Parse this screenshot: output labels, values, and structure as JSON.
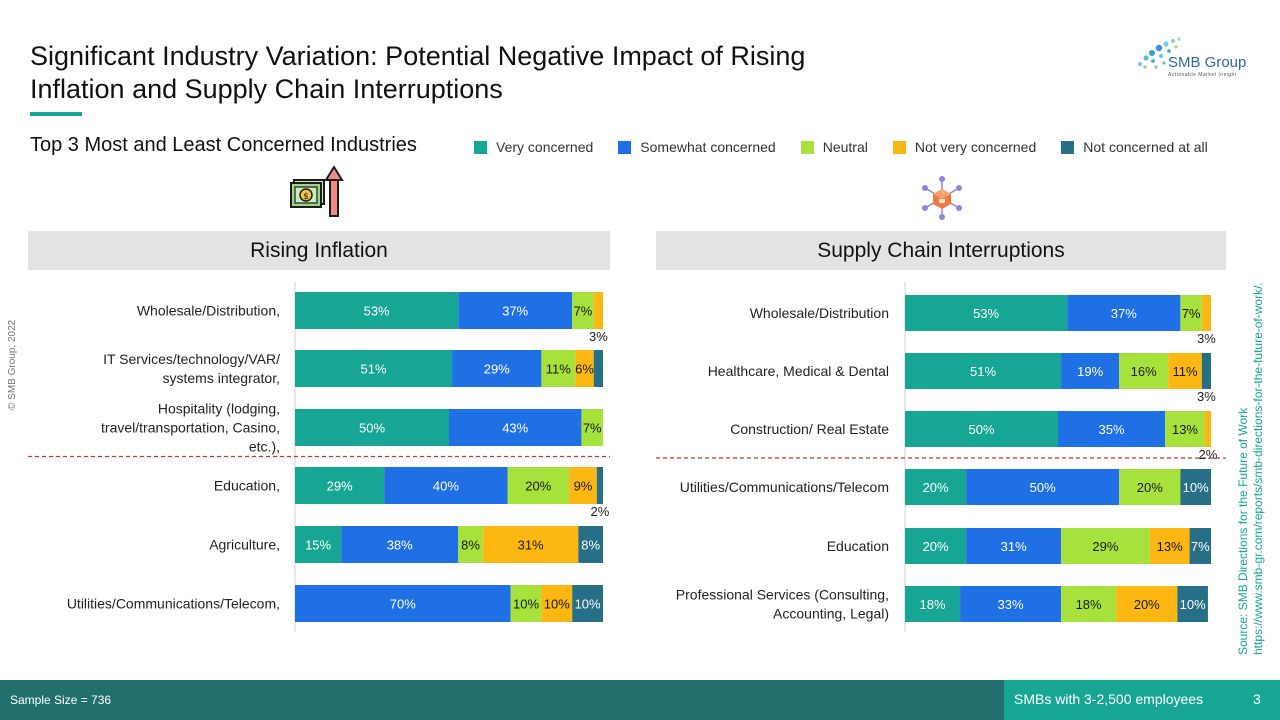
{
  "slide": {
    "title": "Significant Industry Variation: Potential Negative Impact of Rising Inflation and Supply Chain Interruptions",
    "subtitle": "Top 3 Most and Least Concerned Industries",
    "copyright": "© SMB Group, 2022",
    "source_line1": "Source: SMB Directions for the Future of Work",
    "source_line2": "https://www.smb-gr.com/reports/smb-directions-for-the-future-of-work/.",
    "footer_left": "Sample Size = 736",
    "footer_right": "SMBs with 3-2,500 employees",
    "page_number": "3",
    "logo_name": "SMB Group",
    "logo_tagline": "Actionable Market Insight",
    "icons": [
      "money-inflation-icon",
      "supply-chain-network-icon",
      "smb-group-logo-icon"
    ]
  },
  "legend": [
    {
      "label": "Very concerned",
      "color": "#16a693"
    },
    {
      "label": "Somewhat concerned",
      "color": "#1f6fe5"
    },
    {
      "label": "Neutral",
      "color": "#a6e13c"
    },
    {
      "label": "Not very concerned",
      "color": "#fcb712"
    },
    {
      "label": "Not concerned at all",
      "color": "#266f87"
    }
  ],
  "chart_data": [
    {
      "type": "bar",
      "orientation": "horizontal",
      "stacked": true,
      "title": "Rising Inflation",
      "xlim": [
        0,
        100
      ],
      "series_names": [
        "Very concerned",
        "Somewhat concerned",
        "Neutral",
        "Not very concerned",
        "Not concerned at all"
      ],
      "categories": [
        "Wholesale/Distribution,",
        "IT Services/technology/VAR/ systems integrator,",
        "Hospitality (lodging, travel/transportation, Casino, etc.),",
        "Education,",
        "Agriculture,",
        "Utilities/Communications/Telecom,"
      ],
      "values": [
        [
          53,
          37,
          7,
          3,
          0
        ],
        [
          51,
          29,
          11,
          6,
          3
        ],
        [
          50,
          43,
          7,
          0,
          0
        ],
        [
          29,
          40,
          20,
          9,
          2
        ],
        [
          15,
          38,
          8,
          31,
          8
        ],
        [
          0,
          70,
          10,
          10,
          10
        ]
      ],
      "labels": [
        [
          "53%",
          "37%",
          "7%",
          "3%",
          ""
        ],
        [
          "51%",
          "29%",
          "11%",
          "6%",
          ""
        ],
        [
          "50%",
          "43%",
          "7%",
          "",
          ""
        ],
        [
          "29%",
          "40%",
          "20%",
          "9%",
          "2%"
        ],
        [
          "15%",
          "38%",
          "8%",
          "31%",
          "8%"
        ],
        [
          "",
          "70%",
          "10%",
          "10%",
          "10%"
        ]
      ],
      "divider_after_index": 2
    },
    {
      "type": "bar",
      "orientation": "horizontal",
      "stacked": true,
      "title": "Supply Chain Interruptions",
      "xlim": [
        0,
        100
      ],
      "series_names": [
        "Very concerned",
        "Somewhat concerned",
        "Neutral",
        "Not very concerned",
        "Not concerned at all"
      ],
      "categories": [
        "Wholesale/Distribution",
        "Healthcare, Medical & Dental",
        "Construction/ Real Estate",
        "Utilities/Communications/Telecom",
        "Education",
        "Professional Services (Consulting, Accounting, Legal)"
      ],
      "values": [
        [
          53,
          37,
          7,
          3,
          0
        ],
        [
          51,
          19,
          16,
          11,
          3
        ],
        [
          50,
          35,
          13,
          2,
          0
        ],
        [
          20,
          50,
          20,
          0,
          10
        ],
        [
          20,
          31,
          29,
          13,
          7
        ],
        [
          18,
          33,
          18,
          20,
          10
        ]
      ],
      "labels": [
        [
          "53%",
          "37%",
          "7%",
          "3%",
          ""
        ],
        [
          "51%",
          "19%",
          "16%",
          "11%",
          "3%"
        ],
        [
          "50%",
          "35%",
          "13%",
          "2%",
          ""
        ],
        [
          "20%",
          "50%",
          "20%",
          "",
          "10%"
        ],
        [
          "20%",
          "31%",
          "29%",
          "13%",
          "7%"
        ],
        [
          "18%",
          "33%",
          "18%",
          "20%",
          "10%"
        ]
      ],
      "divider_after_index": 2
    }
  ]
}
